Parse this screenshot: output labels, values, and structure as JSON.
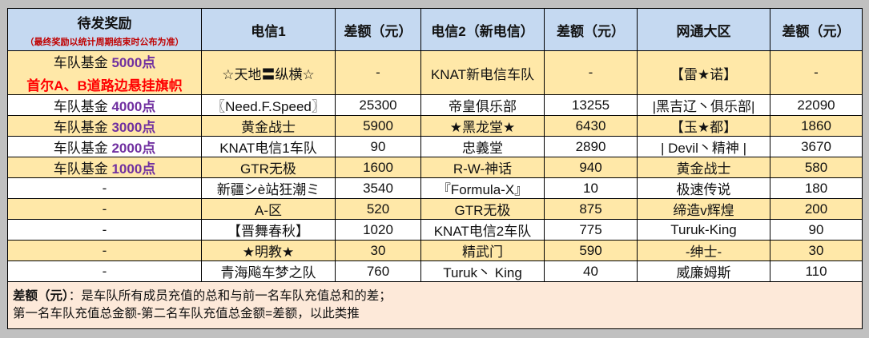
{
  "header": {
    "reward_title": "待发奖励",
    "reward_subtitle": "（最终奖励以统计周期结束时公布为准）",
    "col2": "电信1",
    "col3": "差额（元）",
    "col4": "电信2（新电信）",
    "col5": "差额（元）",
    "col6": "网通大区",
    "col7": "差额（元）"
  },
  "rows": [
    {
      "fund_prefix": "车队基金 ",
      "fund_points": "5000点",
      "fund_extra": "首尔A、B道路边悬挂旗帜",
      "t1": "☆天地〓纵横☆",
      "d1": "-",
      "t2": "KNAT新电信车队",
      "d2": "-",
      "t3": "【雷★诺】",
      "d3": "-"
    },
    {
      "fund_prefix": "车队基金 ",
      "fund_points": "4000点",
      "fund_extra": "",
      "t1": "〖Need.F.Speed〗",
      "d1": "25300",
      "t2": "帝皇俱乐部",
      "d2": "13255",
      "t3": "|黑吉辽丶俱乐部|",
      "d3": "22090"
    },
    {
      "fund_prefix": "车队基金 ",
      "fund_points": "3000点",
      "fund_extra": "",
      "t1": "黄金战士",
      "d1": "5900",
      "t2": "★黑龙堂★",
      "d2": "6430",
      "t3": "【玉★都】",
      "d3": "1860"
    },
    {
      "fund_prefix": "车队基金 ",
      "fund_points": "2000点",
      "fund_extra": "",
      "t1": "KNAT电信1车队",
      "d1": "90",
      "t2": "忠義堂",
      "d2": "2890",
      "t3": "| Devil丶精神 |",
      "d3": "3670"
    },
    {
      "fund_prefix": "车队基金 ",
      "fund_points": "1000点",
      "fund_extra": "",
      "t1": "GTR无极",
      "d1": "1600",
      "t2": "R-W-神话",
      "d2": "940",
      "t3": "黄金战士",
      "d3": "580"
    },
    {
      "fund_prefix": "-",
      "fund_points": "",
      "fund_extra": "",
      "t1": "新疆シè站狂潮ミ",
      "d1": "3540",
      "t2": "『Formula-X』",
      "d2": "10",
      "t3": "极速传说",
      "d3": "180"
    },
    {
      "fund_prefix": "-",
      "fund_points": "",
      "fund_extra": "",
      "t1": "A-区",
      "d1": "520",
      "t2": "GTR无极",
      "d2": "875",
      "t3": "缔造v辉煌",
      "d3": "200"
    },
    {
      "fund_prefix": "-",
      "fund_points": "",
      "fund_extra": "",
      "t1": "【晋舞春秋】",
      "d1": "1020",
      "t2": "KNAT电信2车队",
      "d2": "775",
      "t3": "Turuk-King",
      "d3": "90"
    },
    {
      "fund_prefix": "-",
      "fund_points": "",
      "fund_extra": "",
      "t1": "★明教★",
      "d1": "30",
      "t2": "精武门",
      "d2": "590",
      "t3": "-绅士-",
      "d3": "30"
    },
    {
      "fund_prefix": "-",
      "fund_points": "",
      "fund_extra": "",
      "t1": "青海飚车梦之队",
      "d1": "760",
      "t2": "Turuk丶 King",
      "d2": "40",
      "t3": "威廉姆斯",
      "d3": "110"
    }
  ],
  "note": {
    "label": "差额（元）",
    "line1_rest": "：是车队所有成员充值的总和与前一名车队充值总和的差；",
    "line2": "第一名车队充值总金额-第二名车队充值总金额=差额，以此类推"
  },
  "colors": {
    "header_bg": "#c5d9f1",
    "row_yellow": "#ffe8a8",
    "row_white": "#ffffff",
    "points_purple": "#7030a0",
    "flag_red": "#ff0000",
    "note_bg": "#fde9d9"
  }
}
